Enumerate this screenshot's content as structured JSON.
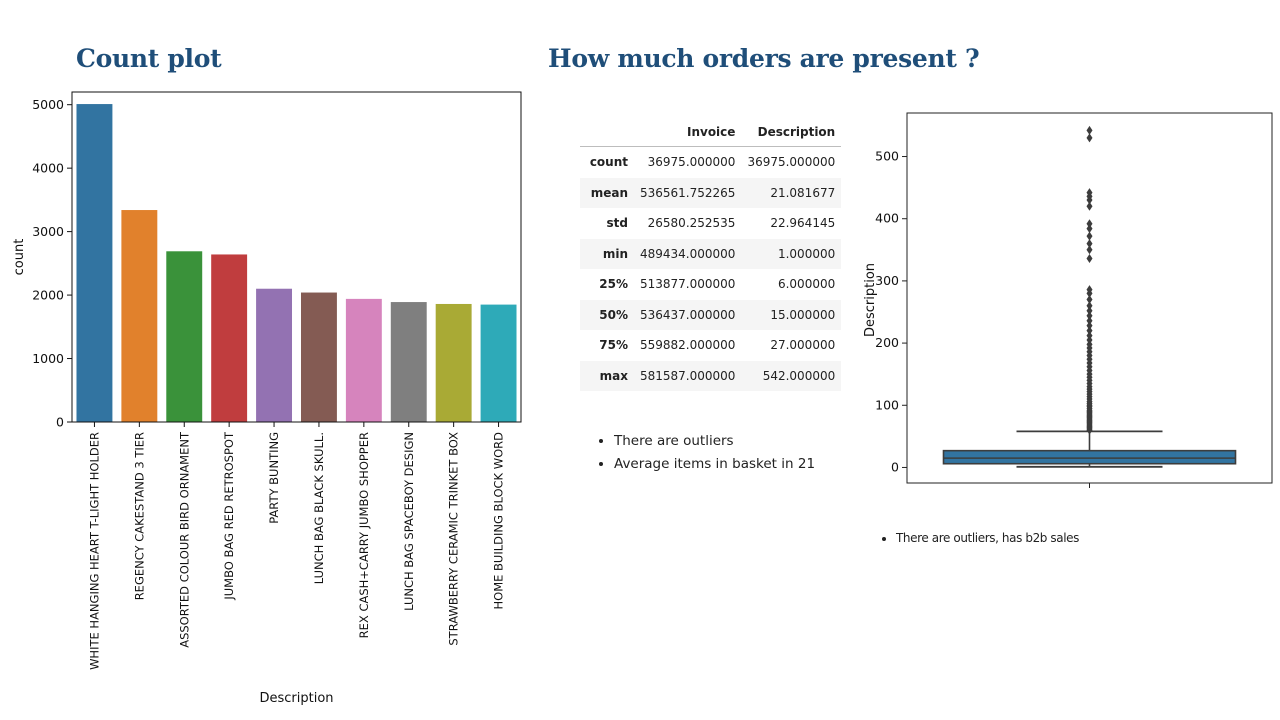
{
  "slide": {
    "title_left": "Count plot",
    "title_right": "How much orders are present ?"
  },
  "chart_data": [
    {
      "type": "bar",
      "xlabel": "Description",
      "ylabel": "count",
      "ylim": [
        0,
        5200
      ],
      "yticks": [
        0,
        1000,
        2000,
        3000,
        4000,
        5000
      ],
      "categories": [
        "WHITE HANGING HEART T-LIGHT HOLDER",
        "REGENCY CAKESTAND 3 TIER",
        "ASSORTED COLOUR BIRD ORNAMENT",
        "JUMBO BAG RED RETROSPOT",
        "PARTY BUNTING",
        "LUNCH BAG  BLACK SKULL.",
        "REX CASH+CARRY JUMBO SHOPPER",
        "LUNCH BAG SPACEBOY DESIGN",
        "STRAWBERRY CERAMIC TRINKET BOX",
        "HOME BUILDING BLOCK WORD"
      ],
      "values": [
        5010,
        3340,
        2690,
        2640,
        2100,
        2040,
        1940,
        1890,
        1860,
        1850
      ],
      "colors": [
        "#3274a1",
        "#e1812c",
        "#3a923a",
        "#c03d3e",
        "#9372b2",
        "#845b53",
        "#d684bd",
        "#7f7f7f",
        "#a9aa35",
        "#2eaab8"
      ]
    },
    {
      "type": "box",
      "ylabel": "Description",
      "ylim": [
        -25,
        570
      ],
      "yticks": [
        0,
        100,
        200,
        300,
        400,
        500
      ],
      "box": {
        "min": 1,
        "q1": 6,
        "median": 15,
        "q3": 27,
        "max": 542,
        "whisker_low": 1,
        "whisker_high": 58
      },
      "outliers": [
        60,
        62,
        64,
        66,
        68,
        70,
        72,
        74,
        76,
        78,
        80,
        82,
        84,
        86,
        88,
        90,
        92,
        95,
        98,
        100,
        103,
        106,
        110,
        114,
        118,
        122,
        126,
        130,
        135,
        140,
        145,
        150,
        156,
        162,
        168,
        174,
        180,
        186,
        192,
        198,
        205,
        212,
        220,
        228,
        236,
        244,
        252,
        260,
        270,
        280,
        286,
        336,
        350,
        360,
        372,
        384,
        392,
        420,
        430,
        436,
        442,
        530,
        542
      ],
      "color": "#3274a1"
    }
  ],
  "table": {
    "columns": [
      "",
      "Invoice",
      "Description"
    ],
    "rows": [
      {
        "label": "count",
        "invoice": "36975.000000",
        "description": "36975.000000"
      },
      {
        "label": "mean",
        "invoice": "536561.752265",
        "description": "21.081677"
      },
      {
        "label": "std",
        "invoice": "26580.252535",
        "description": "22.964145"
      },
      {
        "label": "min",
        "invoice": "489434.000000",
        "description": "1.000000"
      },
      {
        "label": "25%",
        "invoice": "513877.000000",
        "description": "6.000000"
      },
      {
        "label": "50%",
        "invoice": "536437.000000",
        "description": "15.000000"
      },
      {
        "label": "75%",
        "invoice": "559882.000000",
        "description": "27.000000"
      },
      {
        "label": "max",
        "invoice": "581587.000000",
        "description": "542.000000"
      }
    ]
  },
  "bullets_mid": [
    "There are outliers",
    "Average items in basket in 21"
  ],
  "bullets_right": [
    "There are outliers, has b2b sales"
  ]
}
